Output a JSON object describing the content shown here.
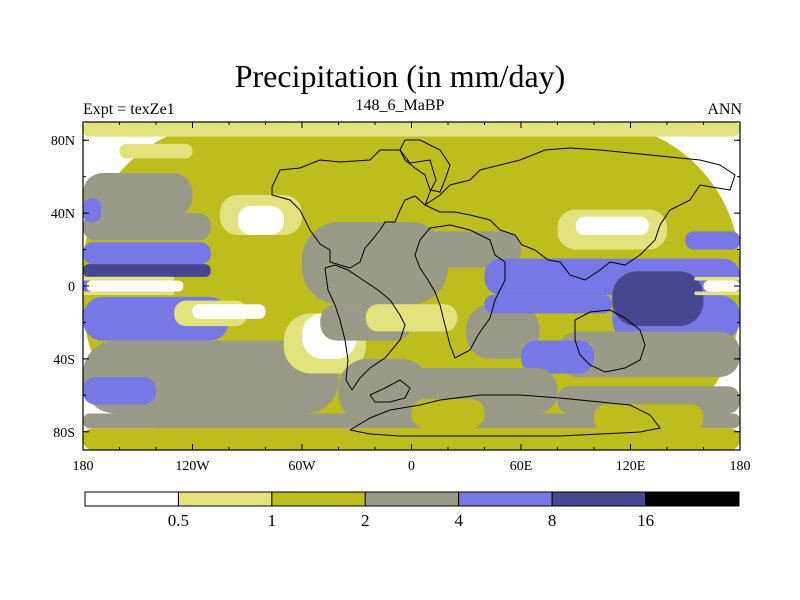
{
  "chart_data": {
    "type": "heatmap",
    "title": "Precipitation (in mm/day)",
    "left_string": "Expt = texZe1",
    "center_string": "148_6_MaBP",
    "right_string": "ANN",
    "x_ticks": [
      {
        "value": -180,
        "label": "180"
      },
      {
        "value": -120,
        "label": "120W"
      },
      {
        "value": -60,
        "label": "60W"
      },
      {
        "value": 0,
        "label": "0"
      },
      {
        "value": 60,
        "label": "60E"
      },
      {
        "value": 120,
        "label": "120E"
      },
      {
        "value": 180,
        "label": "180"
      }
    ],
    "y_ticks": [
      {
        "value": 80,
        "label": "80N"
      },
      {
        "value": 40,
        "label": "40N"
      },
      {
        "value": 0,
        "label": "0"
      },
      {
        "value": -40,
        "label": "40S"
      },
      {
        "value": -80,
        "label": "80S"
      }
    ],
    "xlim": [
      -180,
      180
    ],
    "ylim": [
      -90,
      90
    ],
    "levels": [
      0.5,
      1,
      2,
      4,
      8,
      16
    ],
    "level_labels": [
      "0.5",
      "1",
      "2",
      "4",
      "8",
      "16"
    ],
    "colors": [
      "#ffffff",
      "#e2e27f",
      "#bdbd1e",
      "#9a9a88",
      "#7777e6",
      "#464691",
      "#000000"
    ],
    "coastline_color": "#000000",
    "regions": [
      {
        "level": 2,
        "lon": [
          -180,
          180
        ],
        "lat": [
          -90,
          90
        ]
      },
      {
        "level": 1,
        "lon": [
          -180,
          180
        ],
        "lat": [
          82,
          90
        ]
      },
      {
        "level": 1,
        "lon": [
          -160,
          -120
        ],
        "lat": [
          70,
          78
        ]
      },
      {
        "level": 3,
        "lon": [
          -180,
          -120
        ],
        "lat": [
          38,
          62
        ]
      },
      {
        "level": 3,
        "lon": [
          -180,
          -110
        ],
        "lat": [
          25,
          40
        ]
      },
      {
        "level": 4,
        "lon": [
          -180,
          -170
        ],
        "lat": [
          35,
          48
        ]
      },
      {
        "level": 4,
        "lon": [
          -180,
          -110
        ],
        "lat": [
          12,
          24
        ]
      },
      {
        "level": 5,
        "lon": [
          -180,
          -110
        ],
        "lat": [
          5,
          12
        ]
      },
      {
        "level": 4,
        "lon": [
          -180,
          -130
        ],
        "lat": [
          -5,
          5
        ]
      },
      {
        "level": 0,
        "lon": [
          -178,
          -125
        ],
        "lat": [
          -3,
          3
        ]
      },
      {
        "level": 1,
        "lon": [
          -180,
          -130
        ],
        "lat": [
          3,
          5
        ]
      },
      {
        "level": 1,
        "lon": [
          -180,
          -130
        ],
        "lat": [
          -5,
          -3
        ]
      },
      {
        "level": 5,
        "lon": [
          -180,
          -160
        ],
        "lat": [
          -22,
          -10
        ]
      },
      {
        "level": 4,
        "lon": [
          -180,
          -100
        ],
        "lat": [
          -30,
          -6
        ]
      },
      {
        "level": 3,
        "lon": [
          -180,
          -40
        ],
        "lat": [
          -70,
          -30
        ]
      },
      {
        "level": 4,
        "lon": [
          -180,
          -140
        ],
        "lat": [
          -65,
          -50
        ]
      },
      {
        "level": 1,
        "lon": [
          -130,
          -90
        ],
        "lat": [
          -22,
          -8
        ]
      },
      {
        "level": 0,
        "lon": [
          -120,
          -80
        ],
        "lat": [
          -18,
          -10
        ]
      },
      {
        "level": 1,
        "lon": [
          -70,
          -25
        ],
        "lat": [
          -48,
          -15
        ]
      },
      {
        "level": 0,
        "lon": [
          -60,
          -30
        ],
        "lat": [
          -40,
          -15
        ]
      },
      {
        "level": 1,
        "lon": [
          -105,
          -60
        ],
        "lat": [
          28,
          50
        ]
      },
      {
        "level": 0,
        "lon": [
          -95,
          -70
        ],
        "lat": [
          28,
          44
        ]
      },
      {
        "level": 3,
        "lon": [
          -60,
          20
        ],
        "lat": [
          -10,
          35
        ]
      },
      {
        "level": 3,
        "lon": [
          -50,
          0
        ],
        "lat": [
          -30,
          -10
        ]
      },
      {
        "level": 1,
        "lon": [
          -25,
          25
        ],
        "lat": [
          -25,
          -10
        ]
      },
      {
        "level": 3,
        "lon": [
          -40,
          10
        ],
        "lat": [
          -75,
          -40
        ]
      },
      {
        "level": 3,
        "lon": [
          -10,
          60
        ],
        "lat": [
          10,
          30
        ]
      },
      {
        "level": 3,
        "lon": [
          30,
          70
        ],
        "lat": [
          -40,
          -10
        ]
      },
      {
        "level": 4,
        "lon": [
          40,
          180
        ],
        "lat": [
          -5,
          15
        ]
      },
      {
        "level": 4,
        "lon": [
          40,
          110
        ],
        "lat": [
          -15,
          -5
        ]
      },
      {
        "level": 4,
        "lon": [
          110,
          180
        ],
        "lat": [
          -30,
          -5
        ]
      },
      {
        "level": 5,
        "lon": [
          110,
          160
        ],
        "lat": [
          -22,
          8
        ]
      },
      {
        "level": 0,
        "lon": [
          160,
          180
        ],
        "lat": [
          -3,
          3
        ]
      },
      {
        "level": 1,
        "lon": [
          155,
          180
        ],
        "lat": [
          3,
          5
        ]
      },
      {
        "level": 1,
        "lon": [
          155,
          180
        ],
        "lat": [
          -5,
          -3
        ]
      },
      {
        "level": 1,
        "lon": [
          80,
          140
        ],
        "lat": [
          20,
          42
        ]
      },
      {
        "level": 0,
        "lon": [
          90,
          130
        ],
        "lat": [
          28,
          38
        ]
      },
      {
        "level": 4,
        "lon": [
          150,
          180
        ],
        "lat": [
          20,
          30
        ]
      },
      {
        "level": 3,
        "lon": [
          80,
          180
        ],
        "lat": [
          -50,
          -25
        ]
      },
      {
        "level": 4,
        "lon": [
          60,
          100
        ],
        "lat": [
          -48,
          -30
        ]
      },
      {
        "level": 3,
        "lon": [
          -20,
          80
        ],
        "lat": [
          -70,
          -45
        ]
      },
      {
        "level": 3,
        "lon": [
          80,
          180
        ],
        "lat": [
          -70,
          -55
        ]
      },
      {
        "level": 3,
        "lon": [
          -180,
          180
        ],
        "lat": [
          -78,
          -70
        ]
      },
      {
        "level": 2,
        "lon": [
          -180,
          180
        ],
        "lat": [
          -90,
          -78
        ]
      },
      {
        "level": 2,
        "lon": [
          0,
          40
        ],
        "lat": [
          -78,
          -62
        ]
      },
      {
        "level": 2,
        "lon": [
          100,
          160
        ],
        "lat": [
          -80,
          -65
        ]
      }
    ]
  }
}
